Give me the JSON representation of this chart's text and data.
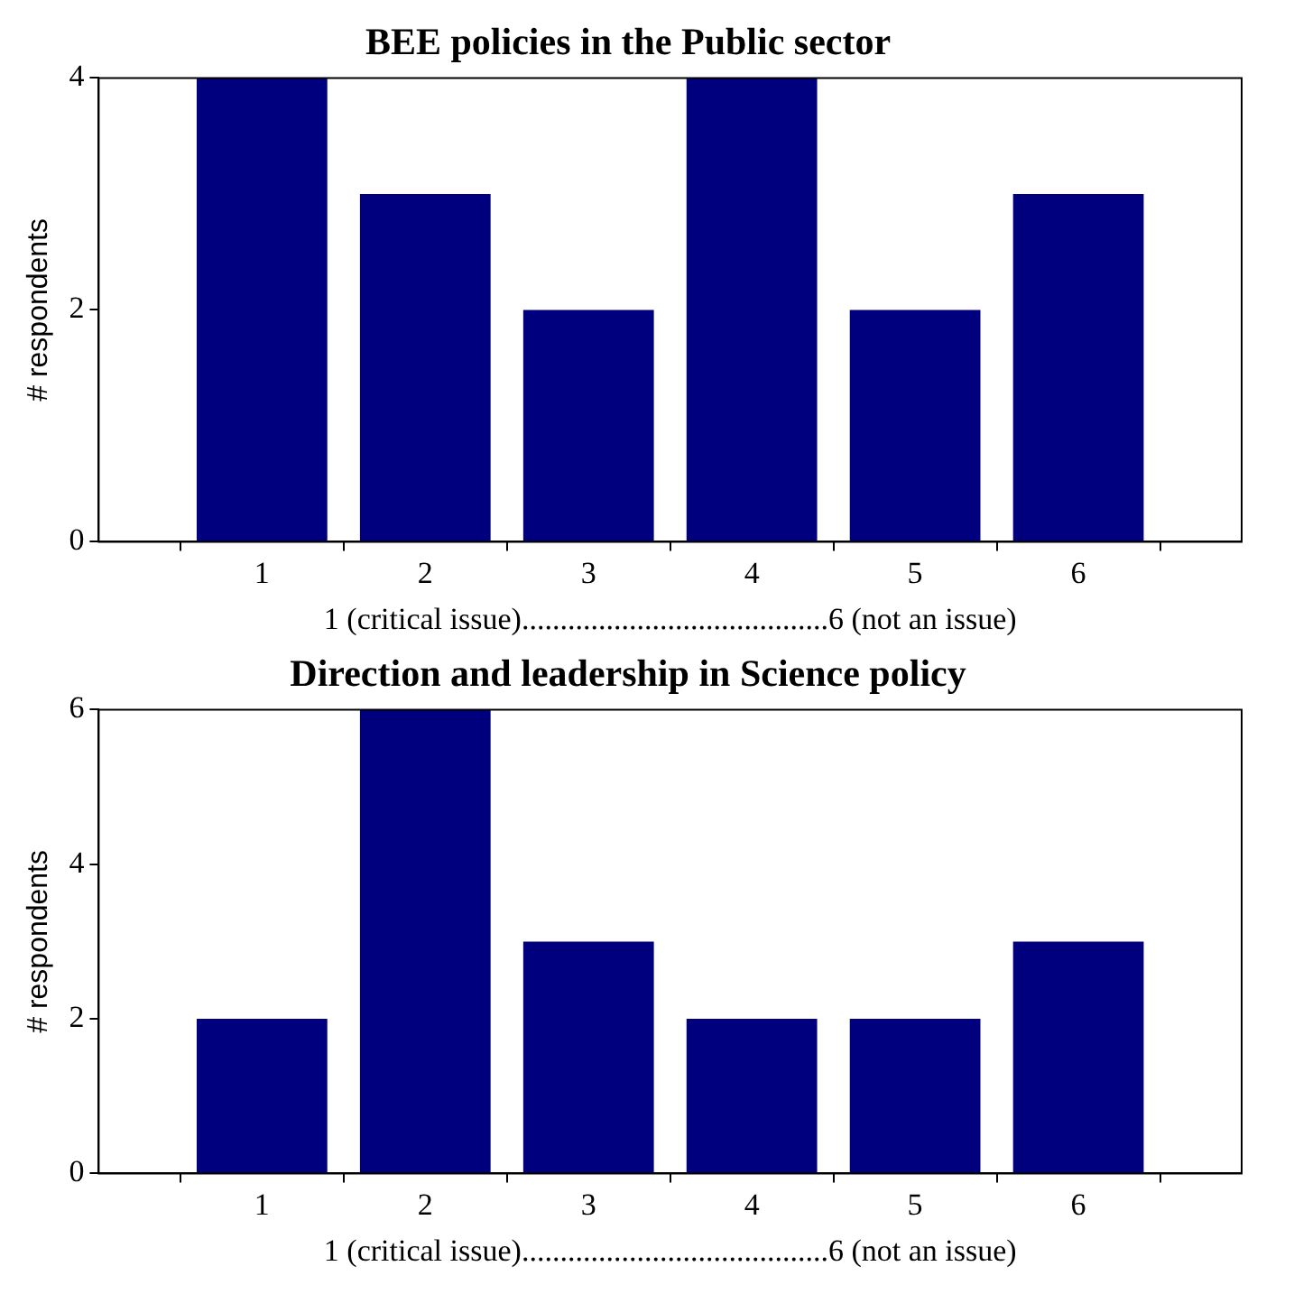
{
  "chart_data": [
    {
      "type": "bar",
      "title": "BEE policies in the Public sector",
      "xlabel": "1 (critical issue)........................................6 (not an issue)",
      "ylabel": "# respondents",
      "x": [
        1,
        2,
        3,
        4,
        5,
        6
      ],
      "values": [
        4,
        3,
        2,
        4,
        2,
        3
      ],
      "color": "#00007f",
      "xlim": [
        0,
        7
      ],
      "xticks": [
        1,
        2,
        3,
        4,
        5,
        6
      ],
      "ylim": [
        0,
        4
      ],
      "yticks": [
        0,
        2,
        4
      ],
      "grid": false,
      "legend": false
    },
    {
      "type": "bar",
      "title": "Direction and leadership in Science policy",
      "xlabel": "1 (critical issue)........................................6 (not an issue)",
      "ylabel": "# respondents",
      "x": [
        1,
        2,
        3,
        4,
        5,
        6
      ],
      "values": [
        2,
        6,
        3,
        2,
        2,
        3
      ],
      "color": "#00007f",
      "xlim": [
        0,
        7
      ],
      "xticks": [
        1,
        2,
        3,
        4,
        5,
        6
      ],
      "ylim": [
        0,
        6
      ],
      "yticks": [
        0,
        2,
        4,
        6
      ],
      "grid": false,
      "legend": false
    }
  ]
}
